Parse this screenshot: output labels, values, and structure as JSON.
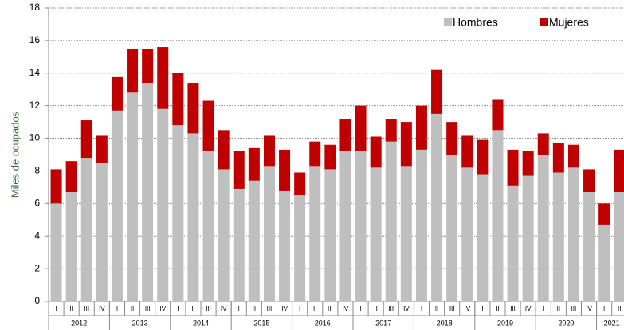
{
  "chart_data": {
    "type": "stacked_bar",
    "y_label": "Miles de ocupados",
    "categories": [
      "I",
      "II",
      "III",
      "IV",
      "I",
      "II",
      "III",
      "IV",
      "I",
      "II",
      "III",
      "IV",
      "I",
      "II",
      "III",
      "IV",
      "I",
      "II",
      "III",
      "IV",
      "I",
      "II",
      "III",
      "IV",
      "I",
      "II",
      "III",
      "IV",
      "I",
      "II",
      "III",
      "IV",
      "I",
      "II",
      "III",
      "IV",
      "I",
      "II"
    ],
    "years": [
      "2012",
      "2013",
      "2014",
      "2015",
      "2016",
      "2017",
      "2018",
      "2019",
      "2020",
      "2021"
    ],
    "series": [
      {
        "name": "Hombres",
        "color": "#bfbfbf",
        "values": [
          6.0,
          6.7,
          8.8,
          8.5,
          11.7,
          12.8,
          13.4,
          11.8,
          10.8,
          10.3,
          9.2,
          8.1,
          6.9,
          7.4,
          8.3,
          6.8,
          6.5,
          8.3,
          8.1,
          9.2,
          9.2,
          8.2,
          9.8,
          8.3,
          9.3,
          11.5,
          9.0,
          8.2,
          7.8,
          10.5,
          7.1,
          7.7,
          9.0,
          7.9,
          8.2,
          6.7,
          4.7,
          6.7
        ]
      },
      {
        "name": "Mujeres",
        "color": "#c00000",
        "values": [
          2.1,
          1.9,
          2.3,
          1.7,
          2.1,
          2.7,
          2.1,
          3.8,
          3.2,
          3.1,
          3.1,
          2.4,
          2.3,
          2.0,
          1.9,
          2.5,
          1.4,
          1.5,
          1.5,
          2.0,
          2.8,
          1.9,
          1.4,
          2.7,
          2.7,
          2.7,
          2.0,
          2.0,
          2.1,
          1.9,
          2.2,
          1.5,
          1.3,
          1.8,
          1.4,
          1.4,
          1.3,
          2.6
        ]
      }
    ],
    "ylim": [
      0,
      18
    ],
    "yticks": [
      0,
      2,
      4,
      6,
      8,
      10,
      12,
      14,
      16,
      18
    ],
    "grid": true,
    "legend": "top-right"
  }
}
